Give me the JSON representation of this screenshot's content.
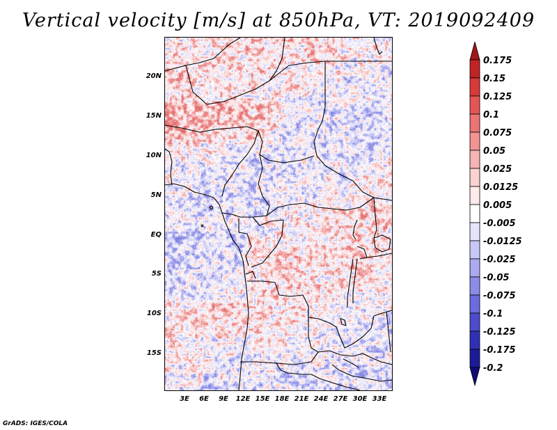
{
  "title": "Vertical velocity [m/s] at 850hPa, VT: 2019092409",
  "credit": "GrADS: IGES/COLA",
  "map": {
    "lat_range": [
      -20,
      25
    ],
    "lon_range": [
      0,
      35
    ],
    "lat_ticks": [
      {
        "value": 20,
        "label": "20N"
      },
      {
        "value": 15,
        "label": "15N"
      },
      {
        "value": 10,
        "label": "10N"
      },
      {
        "value": 5,
        "label": "5N"
      },
      {
        "value": 0,
        "label": "EQ"
      },
      {
        "value": -5,
        "label": "5S"
      },
      {
        "value": -10,
        "label": "10S"
      },
      {
        "value": -15,
        "label": "15S"
      }
    ],
    "lon_ticks": [
      {
        "value": 3,
        "label": "3E"
      },
      {
        "value": 6,
        "label": "6E"
      },
      {
        "value": 9,
        "label": "9E"
      },
      {
        "value": 12,
        "label": "12E"
      },
      {
        "value": 15,
        "label": "15E"
      },
      {
        "value": 18,
        "label": "18E"
      },
      {
        "value": 21,
        "label": "21E"
      },
      {
        "value": 24,
        "label": "24E"
      },
      {
        "value": 27,
        "label": "27E"
      },
      {
        "value": 30,
        "label": "30E"
      },
      {
        "value": 33,
        "label": "33E"
      }
    ]
  },
  "colorbar": {
    "labels": [
      "0.175",
      "0.15",
      "0.125",
      "0.1",
      "0.075",
      "0.05",
      "0.025",
      "0.0125",
      "0.005",
      "-0.005",
      "-0.0125",
      "-0.025",
      "-0.05",
      "-0.075",
      "-0.1",
      "-0.125",
      "-0.175",
      "-0.2"
    ],
    "colors": [
      "#a01818",
      "#c02424",
      "#d83a3a",
      "#e45656",
      "#ec7474",
      "#f29494",
      "#f6b4b4",
      "#fad2d2",
      "#fdeaea",
      "#ffffff",
      "#e4e4fb",
      "#c8c8f6",
      "#aaaaf0",
      "#8c8ce8",
      "#6c6cdc",
      "#4c4ccc",
      "#3030b4",
      "#1c1c98",
      "#100c78"
    ]
  },
  "colors": {
    "positive_light": "#f9c9c9",
    "positive_strong": "#e66a6a",
    "negative_light": "#d5d5f8",
    "negative_strong": "#8080e6",
    "boundary": "#000000"
  }
}
